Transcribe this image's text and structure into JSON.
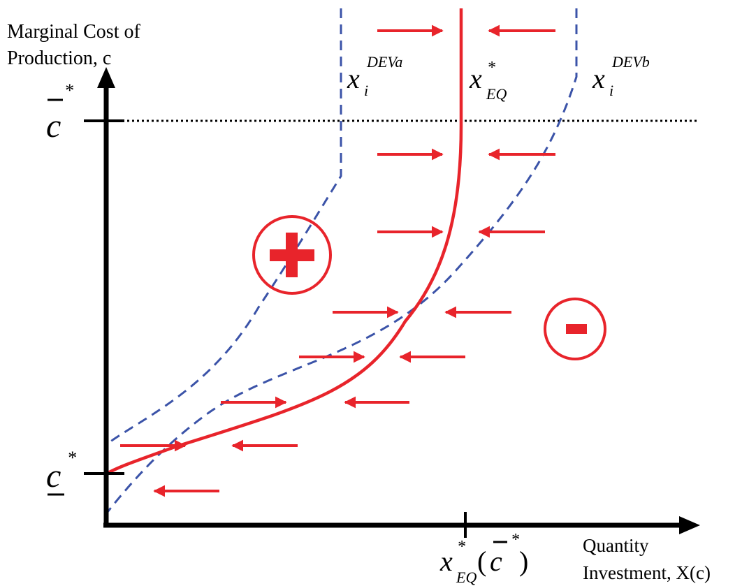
{
  "axes": {
    "y_label_line1": "Marginal Cost of",
    "y_label_line2": "Production, c",
    "x_label_line1": "Quantity",
    "x_label_line2": "Investment, X(c)"
  },
  "y_ticks": {
    "upper": {
      "base": "c",
      "sup": "*"
    },
    "lower": {
      "base": "c",
      "sup": "*"
    }
  },
  "x_tick": {
    "base": "x",
    "sup": "*",
    "sub": "EQ",
    "arg_open": "(",
    "arg": "c",
    "arg_sup": "*",
    "arg_close": ")"
  },
  "curves": {
    "devA": {
      "base": "x",
      "sub": "i",
      "sup": "DEVa"
    },
    "eq": {
      "base": "x",
      "sub": "EQ",
      "sup": "*"
    },
    "devB": {
      "base": "x",
      "sub": "i",
      "sup": "DEVb"
    }
  },
  "regions": {
    "plus_symbol": "plus-icon",
    "minus_symbol": "minus-icon"
  },
  "colors": {
    "equilibrium_curve": "#e8242b",
    "deviation_curves": "#3b53a8",
    "arrows": "#e8242b",
    "axes": "#000000"
  }
}
